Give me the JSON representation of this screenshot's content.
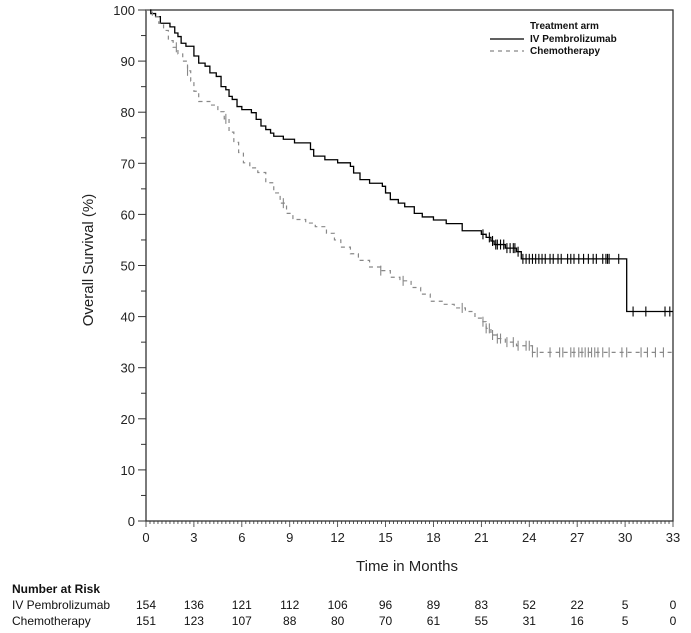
{
  "chart_data": {
    "type": "line",
    "subtype": "kaplan-meier",
    "title": "",
    "xlabel": "Time in Months",
    "ylabel": "Overall Survival (%)",
    "xlim": [
      0,
      33
    ],
    "ylim": [
      0,
      100
    ],
    "xticks": [
      0,
      3,
      6,
      9,
      12,
      15,
      18,
      21,
      24,
      27,
      30,
      33
    ],
    "yticks": [
      0,
      10,
      20,
      30,
      40,
      50,
      60,
      70,
      80,
      90,
      100
    ],
    "grid": false,
    "legend": {
      "title": "Treatment arm",
      "placement": "top-right",
      "entries": [
        {
          "name": "IV Pembrolizumab",
          "style": "solid",
          "color": "#000000"
        },
        {
          "name": "Chemotherapy",
          "style": "dashed",
          "color": "#888888"
        }
      ]
    },
    "series": [
      {
        "name": "IV Pembrolizumab",
        "color": "#000000",
        "style": "solid",
        "steps": [
          [
            0,
            100
          ],
          [
            0.3,
            99.3
          ],
          [
            0.6,
            98.7
          ],
          [
            0.9,
            97.4
          ],
          [
            1.5,
            96.7
          ],
          [
            1.8,
            95.5
          ],
          [
            2.0,
            94.8
          ],
          [
            2.2,
            93.5
          ],
          [
            2.5,
            92.9
          ],
          [
            3.0,
            91.0
          ],
          [
            3.3,
            89.6
          ],
          [
            3.7,
            89.0
          ],
          [
            4.0,
            87.7
          ],
          [
            4.4,
            87.0
          ],
          [
            4.7,
            85.0
          ],
          [
            5.0,
            84.4
          ],
          [
            5.2,
            83.1
          ],
          [
            5.4,
            82.5
          ],
          [
            5.7,
            81.1
          ],
          [
            6.0,
            80.5
          ],
          [
            6.6,
            79.9
          ],
          [
            6.9,
            78.6
          ],
          [
            7.2,
            77.3
          ],
          [
            7.5,
            76.6
          ],
          [
            7.8,
            75.9
          ],
          [
            8.0,
            75.3
          ],
          [
            8.6,
            74.7
          ],
          [
            9.3,
            74.0
          ],
          [
            10.3,
            72.7
          ],
          [
            10.5,
            71.4
          ],
          [
            11.2,
            70.7
          ],
          [
            12.0,
            70.1
          ],
          [
            12.8,
            69.4
          ],
          [
            13.0,
            68.1
          ],
          [
            13.4,
            66.8
          ],
          [
            14.0,
            66.1
          ],
          [
            14.8,
            65.5
          ],
          [
            15.0,
            64.2
          ],
          [
            15.3,
            62.9
          ],
          [
            15.8,
            62.2
          ],
          [
            16.2,
            61.5
          ],
          [
            16.8,
            60.2
          ],
          [
            17.3,
            59.5
          ],
          [
            18.0,
            58.9
          ],
          [
            18.8,
            58.2
          ],
          [
            19.8,
            56.8
          ],
          [
            21.0,
            56.1
          ],
          [
            21.3,
            55.5
          ],
          [
            21.6,
            54.8
          ],
          [
            21.8,
            54.1
          ],
          [
            22.5,
            53.4
          ],
          [
            23.2,
            52.7
          ],
          [
            23.5,
            51.3
          ],
          [
            30.0,
            51.3
          ],
          [
            30.1,
            41.0
          ],
          [
            33.0,
            41.0
          ]
        ],
        "censored": [
          21.1,
          21.5,
          21.7,
          21.9,
          22.0,
          22.2,
          22.4,
          22.6,
          22.8,
          23.0,
          23.1,
          23.3,
          23.6,
          23.8,
          24.0,
          24.2,
          24.4,
          24.6,
          24.8,
          25.0,
          25.3,
          25.5,
          25.8,
          26.0,
          26.4,
          26.6,
          26.8,
          27.1,
          27.4,
          27.7,
          28.0,
          28.2,
          28.6,
          28.8,
          28.9,
          29.0,
          29.6,
          30.5,
          31.3,
          32.5,
          32.8
        ]
      },
      {
        "name": "Chemotherapy",
        "color": "#888888",
        "style": "dashed",
        "steps": [
          [
            0,
            100
          ],
          [
            0.4,
            98.7
          ],
          [
            0.8,
            97.4
          ],
          [
            1.1,
            96.0
          ],
          [
            1.4,
            94.0
          ],
          [
            1.7,
            92.7
          ],
          [
            2.0,
            91.4
          ],
          [
            2.3,
            90.0
          ],
          [
            2.6,
            88.1
          ],
          [
            2.8,
            86.1
          ],
          [
            3.0,
            84.1
          ],
          [
            3.3,
            82.1
          ],
          [
            4.0,
            81.4
          ],
          [
            4.5,
            80.1
          ],
          [
            4.9,
            78.7
          ],
          [
            5.2,
            76.1
          ],
          [
            5.5,
            74.1
          ],
          [
            5.8,
            72.1
          ],
          [
            6.1,
            70.1
          ],
          [
            6.5,
            69.1
          ],
          [
            7.0,
            68.2
          ],
          [
            7.5,
            66.2
          ],
          [
            8.0,
            64.2
          ],
          [
            8.4,
            62.2
          ],
          [
            8.8,
            60.2
          ],
          [
            9.2,
            59.0
          ],
          [
            10.0,
            58.3
          ],
          [
            10.6,
            57.6
          ],
          [
            11.3,
            56.3
          ],
          [
            11.8,
            55.0
          ],
          [
            12.2,
            53.6
          ],
          [
            12.8,
            52.3
          ],
          [
            13.3,
            51.0
          ],
          [
            14.0,
            49.7
          ],
          [
            14.7,
            49.0
          ],
          [
            15.3,
            47.7
          ],
          [
            15.9,
            47.0
          ],
          [
            16.6,
            45.7
          ],
          [
            17.2,
            44.4
          ],
          [
            17.8,
            43.0
          ],
          [
            18.6,
            42.4
          ],
          [
            19.3,
            41.7
          ],
          [
            20.0,
            41.0
          ],
          [
            20.6,
            39.7
          ],
          [
            21.0,
            39.0
          ],
          [
            21.3,
            37.7
          ],
          [
            21.6,
            36.4
          ],
          [
            22.0,
            35.7
          ],
          [
            22.5,
            35.0
          ],
          [
            23.2,
            34.3
          ],
          [
            24.2,
            33.0
          ],
          [
            33.0,
            33.0
          ]
        ],
        "censored": [
          1.9,
          2.6,
          5.0,
          8.6,
          14.7,
          16.1,
          19.8,
          21.1,
          21.3,
          21.5,
          21.7,
          22.0,
          22.2,
          22.6,
          23.0,
          23.3,
          23.8,
          24.0,
          24.2,
          24.5,
          25.3,
          25.9,
          26.1,
          26.6,
          26.8,
          27.1,
          27.3,
          27.5,
          27.7,
          27.9,
          28.1,
          28.3,
          28.6,
          29.0,
          29.8,
          30.1,
          31.0,
          31.4,
          31.9,
          32.4
        ]
      }
    ],
    "number_at_risk": {
      "title": "Number at Risk",
      "times": [
        0,
        3,
        6,
        9,
        12,
        15,
        18,
        21,
        24,
        27,
        30,
        33
      ],
      "rows": [
        {
          "name": "IV Pembrolizumab",
          "values": [
            154,
            136,
            121,
            112,
            106,
            96,
            89,
            83,
            52,
            22,
            5,
            0
          ]
        },
        {
          "name": "Chemotherapy",
          "values": [
            151,
            123,
            107,
            88,
            80,
            70,
            61,
            55,
            31,
            16,
            5,
            0
          ]
        }
      ]
    }
  }
}
